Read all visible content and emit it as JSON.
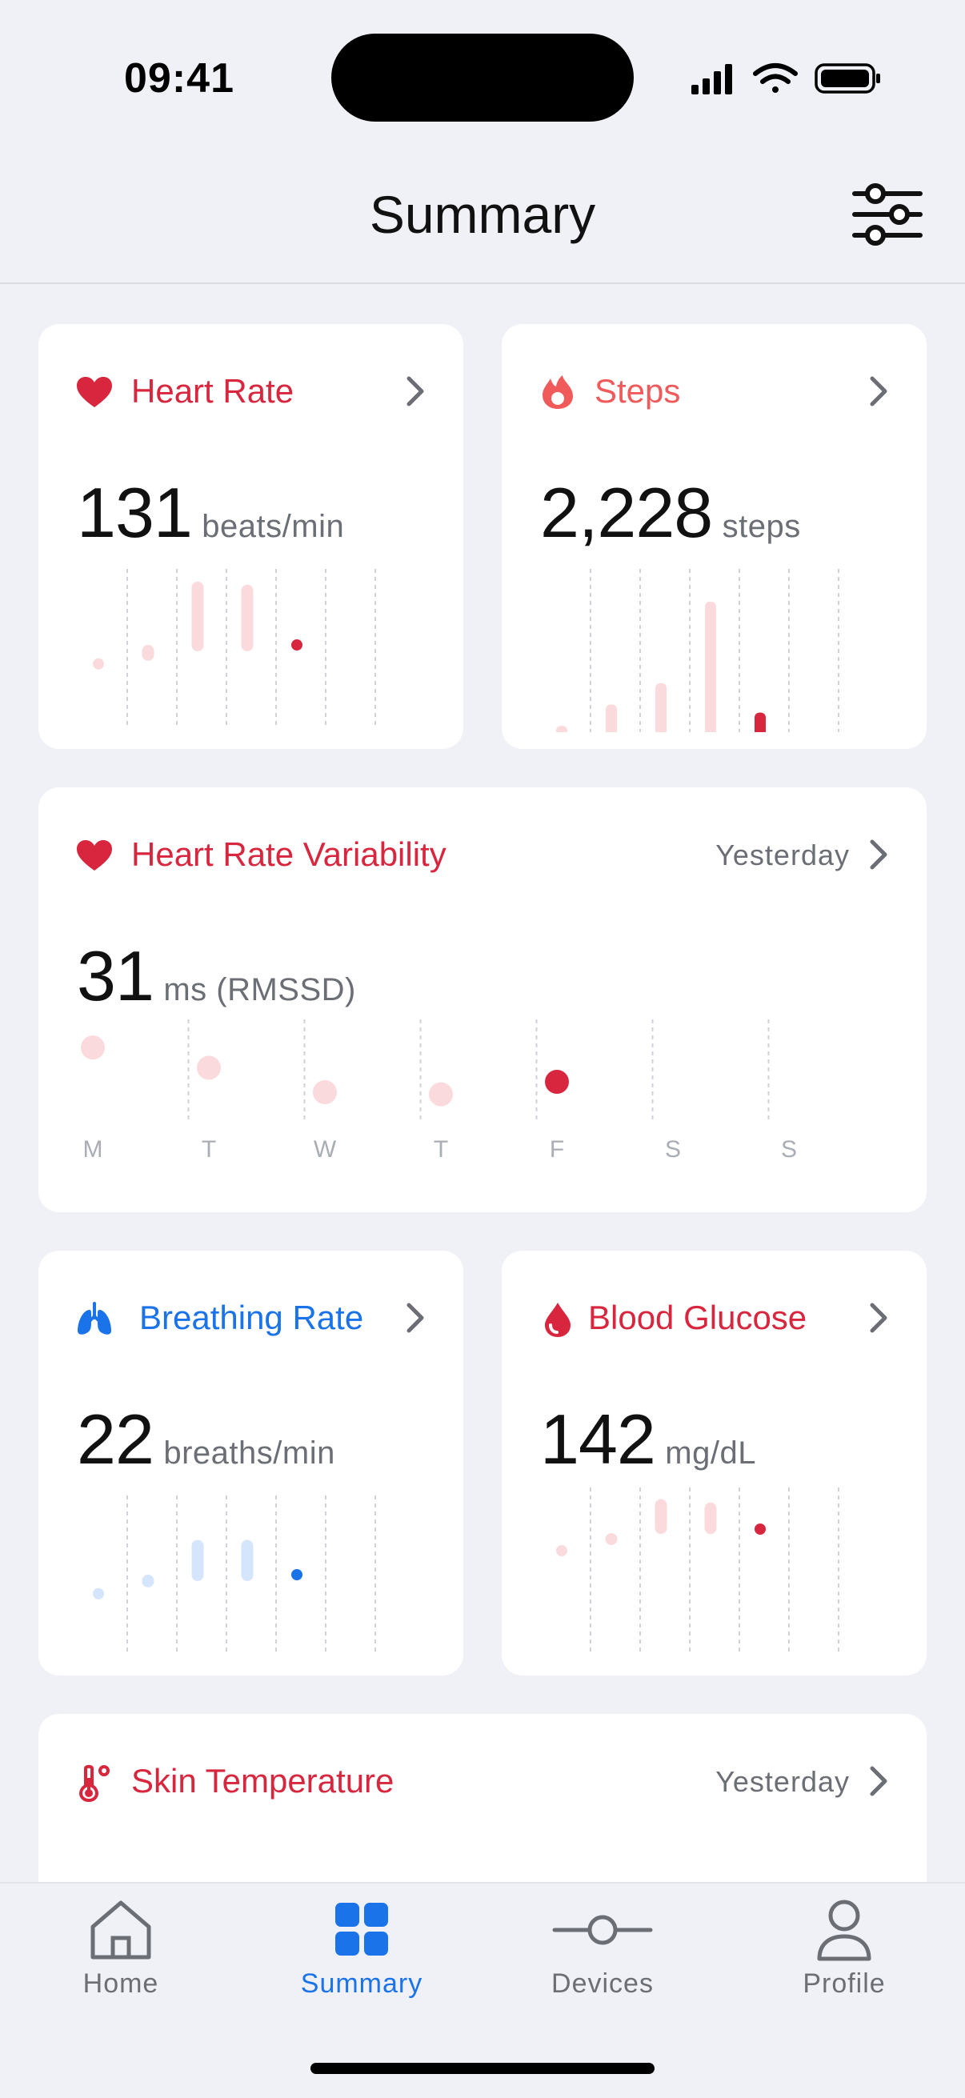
{
  "status": {
    "time": "09:41"
  },
  "header": {
    "title": "Summary"
  },
  "cards": {
    "heart_rate": {
      "title": "Heart Rate",
      "value": "131",
      "unit": "beats/min"
    },
    "steps": {
      "title": "Steps",
      "value": "2,228",
      "unit": "steps"
    },
    "hrv": {
      "title": "Heart Rate Variability",
      "subtitle": "Yesterday",
      "value": "31",
      "unit": "ms (RMSSD)",
      "days": [
        "M",
        "T",
        "W",
        "T",
        "F",
        "S",
        "S"
      ]
    },
    "breathing": {
      "title": "Breathing Rate",
      "value": "22",
      "unit": "breaths/min"
    },
    "glucose": {
      "title": "Blood Glucose",
      "value": "142",
      "unit": "mg/dL"
    },
    "skin_temp": {
      "title": "Skin Temperature",
      "subtitle": "Yesterday"
    }
  },
  "tabs": [
    {
      "label": "Home",
      "icon": "home-icon"
    },
    {
      "label": "Summary",
      "icon": "grid-icon",
      "active": true
    },
    {
      "label": "Devices",
      "icon": "device-icon"
    },
    {
      "label": "Profile",
      "icon": "person-icon"
    }
  ],
  "colors": {
    "red": "#D7263D",
    "salmon": "#F05A5A",
    "blue": "#1A73E8",
    "pink_light": "#FADADD",
    "blue_light": "#D4E5FC"
  },
  "chart_data": [
    {
      "type": "range",
      "card": "Heart Rate",
      "columns": 6,
      "ranges": [
        [
          0.4,
          0.4
        ],
        [
          0.42,
          0.52
        ],
        [
          0.48,
          0.92
        ],
        [
          0.48,
          0.9
        ],
        [
          0.52,
          0.52
        ]
      ],
      "highlight_index": 4
    },
    {
      "type": "bar",
      "card": "Steps",
      "columns": 6,
      "values": [
        0.03,
        0.17,
        0.3,
        0.8,
        0.12
      ],
      "highlight_index": 4
    },
    {
      "type": "range",
      "card": "Heart Rate Variability",
      "categories": [
        "M",
        "T",
        "W",
        "T",
        "F",
        "S",
        "S"
      ],
      "ranges": [
        [
          0.73,
          0.73
        ],
        [
          0.47,
          0.6
        ],
        [
          0.3,
          0.3
        ],
        [
          0.28,
          0.28
        ],
        [
          0.4,
          0.4
        ]
      ],
      "highlight_index": 4
    },
    {
      "type": "range",
      "card": "Breathing Rate",
      "columns": 6,
      "ranges": [
        [
          0.38,
          0.38
        ],
        [
          0.42,
          0.5
        ],
        [
          0.46,
          0.72
        ],
        [
          0.46,
          0.72
        ],
        [
          0.5,
          0.5
        ]
      ],
      "highlight_index": 4
    },
    {
      "type": "range",
      "card": "Blood Glucose",
      "columns": 6,
      "ranges": [
        [
          0.62,
          0.62
        ],
        [
          0.66,
          0.72
        ],
        [
          0.72,
          0.93
        ],
        [
          0.72,
          0.91
        ],
        [
          0.75,
          0.75
        ]
      ],
      "highlight_index": 4
    }
  ]
}
